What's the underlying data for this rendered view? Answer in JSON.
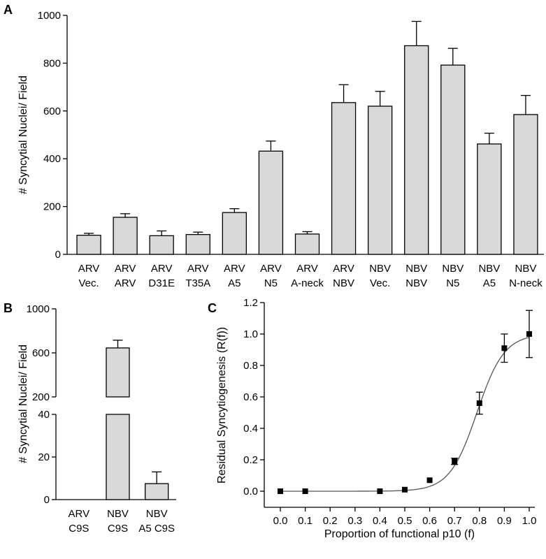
{
  "chart_data": [
    {
      "panel": "A",
      "type": "bar",
      "ylabel": "# Syncytial Nuclei/ Field",
      "ylim": [
        0,
        1000
      ],
      "yticks": [
        0,
        200,
        400,
        600,
        800,
        1000
      ],
      "categories": [
        [
          "ARV",
          "Vec."
        ],
        [
          "ARV",
          "ARV"
        ],
        [
          "ARV",
          "D31E"
        ],
        [
          "ARV",
          "T35A"
        ],
        [
          "ARV",
          "A5"
        ],
        [
          "ARV",
          "N5"
        ],
        [
          "ARV",
          "A-neck"
        ],
        [
          "ARV",
          "NBV"
        ],
        [
          "NBV",
          "Vec."
        ],
        [
          "NBV",
          "NBV"
        ],
        [
          "NBV",
          "N5"
        ],
        [
          "NBV",
          "A5"
        ],
        [
          "NBV",
          "N-neck"
        ]
      ],
      "values": [
        80,
        155,
        78,
        83,
        175,
        432,
        85,
        635,
        620,
        873,
        792,
        462,
        585
      ],
      "errors": [
        8,
        15,
        20,
        10,
        16,
        42,
        10,
        75,
        62,
        102,
        70,
        45,
        80
      ]
    },
    {
      "panel": "B",
      "type": "bar",
      "ylabel": "# Syncytial Nuclei/ Field",
      "yticks_lower": [
        0,
        20,
        40
      ],
      "yticks_upper": [
        200,
        600,
        1000
      ],
      "axis_break": [
        40,
        200
      ],
      "categories": [
        [
          "ARV",
          "C9S"
        ],
        [
          "NBV",
          "C9S"
        ],
        [
          "NBV",
          "A5 C9S"
        ]
      ],
      "values": [
        0,
        645,
        7.5
      ],
      "errors": [
        0,
        70,
        5.5
      ]
    },
    {
      "panel": "C",
      "type": "scatter",
      "xlabel": "Proportion of functional p10 (f)",
      "ylabel": "Residual Syncytiogenesis (R(f))",
      "xlim": [
        0.0,
        1.0
      ],
      "ylim": [
        0.0,
        1.2
      ],
      "xticks": [
        "0.0",
        "0.1",
        "0.2",
        "0.3",
        "0.4",
        "0.5",
        "0.6",
        "0.7",
        "0.8",
        "0.9",
        "1.0"
      ],
      "yticks": [
        "0.0",
        "0.2",
        "0.4",
        "0.6",
        "0.8",
        "1.0",
        "1.2"
      ],
      "x": [
        0.0,
        0.1,
        0.4,
        0.5,
        0.6,
        0.7,
        0.8,
        0.9,
        1.0
      ],
      "y": [
        0.0,
        0.0,
        0.0,
        0.01,
        0.07,
        0.19,
        0.56,
        0.91,
        1.0
      ],
      "errors": [
        0,
        0,
        0,
        0,
        0,
        0.02,
        0.07,
        0.09,
        0.15
      ]
    }
  ]
}
